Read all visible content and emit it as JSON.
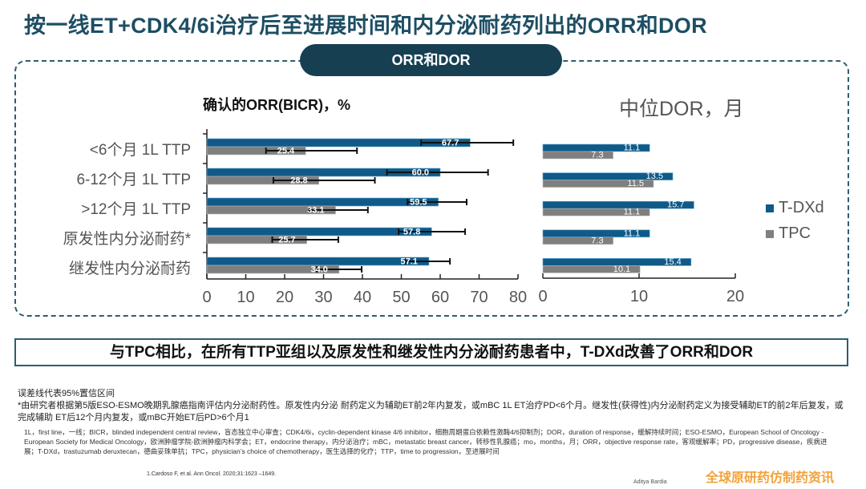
{
  "title": "按一线ET+CDK4/6i治疗后至进展时间和内分泌耐药列出的ORR和DOR",
  "section_label": "ORR和DOR",
  "colors": {
    "t_dxd": "#0f5a88",
    "tpc": "#7f7f7f",
    "accent": "#1d4e63"
  },
  "chart_data": [
    {
      "type": "bar",
      "orientation": "horizontal",
      "title": "确认的ORR(BICR)，%",
      "categories": [
        "<6个月 1L TTP",
        "6-12个月 1L TTP",
        ">12个月 1L TTP",
        "原发性内分泌耐药*",
        "继发性内分泌耐药"
      ],
      "series": [
        {
          "name": "T-DXd",
          "values": [
            67.7,
            60.0,
            59.5,
            57.8,
            57.1
          ],
          "labels": [
            "67.7",
            "60.0",
            "59.5",
            "57.8",
            "57.1"
          ],
          "ci": [
            [
              55.1,
              78.8
            ],
            [
              46.3,
              72.3
            ],
            [
              51.6,
              66.8
            ],
            [
              49.3,
              66.4
            ],
            [
              51.1,
              62.5
            ]
          ]
        },
        {
          "name": "TPC",
          "values": [
            25.4,
            28.8,
            33.1,
            25.7,
            34.0
          ],
          "labels": [
            "25.4",
            "28.8",
            "33.1",
            "25.7",
            "34.0"
          ],
          "ci": [
            [
              15.2,
              38.6
            ],
            [
              17.1,
              43.2
            ],
            [
              26.3,
              41.4
            ],
            [
              16.8,
              33.8
            ],
            [
              28.3,
              39.8
            ]
          ]
        }
      ],
      "xlim": [
        0,
        80
      ],
      "ticks": [
        "0",
        "10",
        "20",
        "30",
        "40",
        "50",
        "60",
        "70",
        "80"
      ]
    },
    {
      "type": "bar",
      "orientation": "horizontal",
      "title": "中位DOR，月",
      "categories": [
        "<6个月 1L TTP",
        "6-12个月 1L TTP",
        ">12个月 1L TTP",
        "原发性内分泌耐药*",
        "继发性内分泌耐药"
      ],
      "series": [
        {
          "name": "T-DXd",
          "values": [
            11.1,
            13.5,
            15.7,
            11.1,
            15.4
          ],
          "labels": [
            "11.1",
            "13.5",
            "15.7",
            "11.1",
            "15.4"
          ]
        },
        {
          "name": "TPC",
          "values": [
            7.3,
            11.5,
            11.1,
            7.3,
            10.1
          ],
          "labels": [
            "7.3",
            "11.5",
            "11.1",
            "7.3",
            "10.1"
          ]
        }
      ],
      "xlim": [
        0,
        20
      ],
      "ticks": [
        "0",
        "10",
        "20"
      ],
      "legend": [
        "T-DXd",
        "TPC"
      ],
      "legend_position": "right"
    }
  ],
  "banner": "与TPC相比，在所有TTP亚组以及原发性和继发性内分泌耐药患者中，T-DXd改善了ORR和DOR",
  "footnotes": {
    "error_bars": "误差线代表95%置信区间",
    "star": "*由研究者根据第5版ESO-ESMO晚期乳腺癌指南评估内分泌耐药性。原发性内分泌 耐药定义为辅助ET前2年内复发，或mBC 1L ET治疗PD<6个月。继发性(获得性)内分泌耐药定义为接受辅助ET的前2年后复发，或完成辅助 ET后12个月内复发，或mBC开始ET后PD>6个月1",
    "abbreviations": "1L，first line，一线；BICR，blinded independent central review，盲态独立中心审查；CDK4/6i，cyclin-dependent kinase 4/6 inhibitor，细胞周期蛋白依赖性激酶4/6抑制剂；DOR，duration of response，缓解持续时间；ESO-ESMO，European School of Oncology -European Society for Medical Oncology，欧洲肿瘤学院-欧洲肿瘤内科学会；ET，endocrine therapy，内分泌治疗；mBC，metastatic breast cancer，转移性乳腺癌；mo，months，月；ORR，objective response rate，客观缓解率；PD，progressive disease，疾病进展；T-DXd，trastuzumab deruxtecan，德曲妥珠单抗；TPC，physician’s choice of chemotherapy，医生选择的化疗；TTP，time to progression，至进展时间",
    "reference": "1.Cardoso F, et al. Ann Oncol. 2020;31:1623 –1649.",
    "author": "Aditya Bardia"
  },
  "watermark": "全球原研药仿制药资讯"
}
